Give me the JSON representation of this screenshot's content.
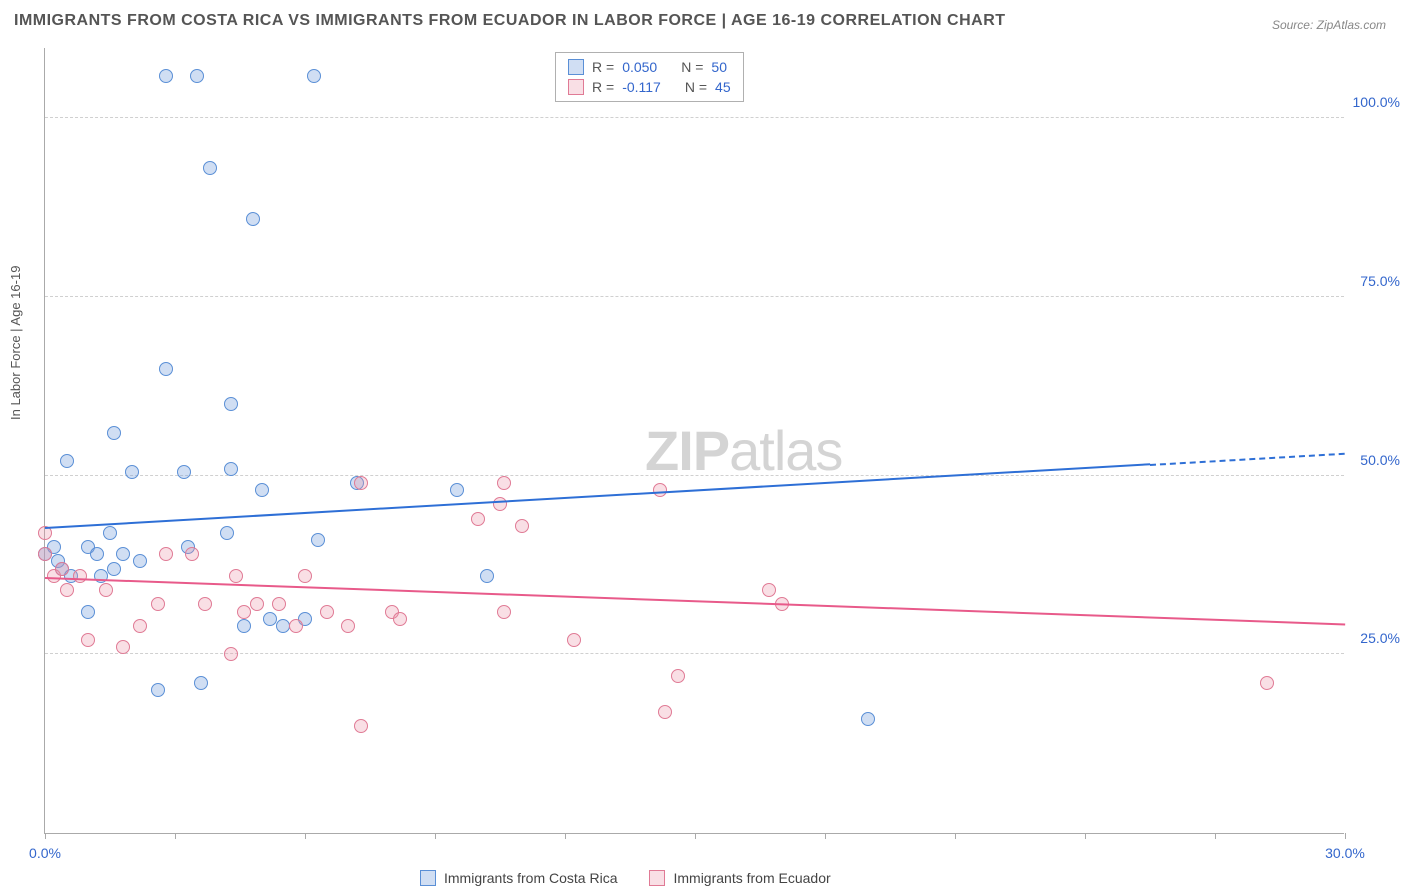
{
  "title": "IMMIGRANTS FROM COSTA RICA VS IMMIGRANTS FROM ECUADOR IN LABOR FORCE | AGE 16-19 CORRELATION CHART",
  "source_label": "Source:",
  "source_name": "ZipAtlas.com",
  "y_axis_label": "In Labor Force | Age 16-19",
  "watermark_bold": "ZIP",
  "watermark_light": "atlas",
  "chart": {
    "type": "scatter-with-trend",
    "background_color": "#ffffff",
    "grid_color": "#d0d0d0",
    "axis_color": "#aaaaaa",
    "tick_label_color": "#3366cc",
    "xlim": [
      0,
      30
    ],
    "ylim": [
      0,
      110
    ],
    "y_ticks": [
      {
        "value": 25,
        "label": "25.0%"
      },
      {
        "value": 50,
        "label": "50.0%"
      },
      {
        "value": 75,
        "label": "75.0%"
      },
      {
        "value": 100,
        "label": "100.0%"
      }
    ],
    "x_ticks": [
      {
        "value": 0,
        "label": "0.0%"
      },
      {
        "value": 3,
        "label": ""
      },
      {
        "value": 6,
        "label": ""
      },
      {
        "value": 9,
        "label": ""
      },
      {
        "value": 12,
        "label": ""
      },
      {
        "value": 15,
        "label": ""
      },
      {
        "value": 18,
        "label": ""
      },
      {
        "value": 21,
        "label": ""
      },
      {
        "value": 24,
        "label": ""
      },
      {
        "value": 27,
        "label": ""
      },
      {
        "value": 30,
        "label": "30.0%"
      }
    ],
    "series": [
      {
        "name": "Immigrants from Costa Rica",
        "fill_color": "rgba(120,160,220,0.35)",
        "stroke_color": "#5a8fd6",
        "trend_color": "#2e6fd6",
        "R": "0.050",
        "N": "50",
        "trend": {
          "y_at_xmin": 42.5,
          "y_at_xmax": 53.0,
          "solid_end_x": 25.5
        },
        "points": [
          {
            "x": 0.0,
            "y": 39
          },
          {
            "x": 0.2,
            "y": 40
          },
          {
            "x": 0.3,
            "y": 38
          },
          {
            "x": 0.4,
            "y": 37
          },
          {
            "x": 0.5,
            "y": 52
          },
          {
            "x": 0.6,
            "y": 36
          },
          {
            "x": 1.0,
            "y": 40
          },
          {
            "x": 1.0,
            "y": 31
          },
          {
            "x": 1.2,
            "y": 39
          },
          {
            "x": 1.3,
            "y": 36
          },
          {
            "x": 1.5,
            "y": 42
          },
          {
            "x": 1.6,
            "y": 37
          },
          {
            "x": 1.6,
            "y": 56
          },
          {
            "x": 1.8,
            "y": 39
          },
          {
            "x": 2.0,
            "y": 50.5
          },
          {
            "x": 2.2,
            "y": 38
          },
          {
            "x": 2.6,
            "y": 20
          },
          {
            "x": 2.8,
            "y": 106
          },
          {
            "x": 2.8,
            "y": 65
          },
          {
            "x": 3.2,
            "y": 50.5
          },
          {
            "x": 3.3,
            "y": 40
          },
          {
            "x": 3.5,
            "y": 106
          },
          {
            "x": 3.6,
            "y": 21
          },
          {
            "x": 3.8,
            "y": 93
          },
          {
            "x": 4.2,
            "y": 42
          },
          {
            "x": 4.3,
            "y": 60
          },
          {
            "x": 4.3,
            "y": 51
          },
          {
            "x": 4.6,
            "y": 29
          },
          {
            "x": 4.8,
            "y": 86
          },
          {
            "x": 5.0,
            "y": 48
          },
          {
            "x": 5.2,
            "y": 30
          },
          {
            "x": 5.5,
            "y": 29
          },
          {
            "x": 6.0,
            "y": 30
          },
          {
            "x": 6.2,
            "y": 106
          },
          {
            "x": 6.3,
            "y": 41
          },
          {
            "x": 7.2,
            "y": 49
          },
          {
            "x": 9.5,
            "y": 48
          },
          {
            "x": 10.2,
            "y": 36
          },
          {
            "x": 19.0,
            "y": 16
          }
        ]
      },
      {
        "name": "Immigrants from Ecuador",
        "fill_color": "rgba(235,150,170,0.30)",
        "stroke_color": "#e07a95",
        "trend_color": "#e85a8a",
        "R": "-0.117",
        "N": "45",
        "trend": {
          "y_at_xmin": 35.5,
          "y_at_xmax": 29.0,
          "solid_end_x": 30
        },
        "points": [
          {
            "x": 0.0,
            "y": 42
          },
          {
            "x": 0.0,
            "y": 39
          },
          {
            "x": 0.2,
            "y": 36
          },
          {
            "x": 0.4,
            "y": 37
          },
          {
            "x": 0.5,
            "y": 34
          },
          {
            "x": 0.8,
            "y": 36
          },
          {
            "x": 1.0,
            "y": 27
          },
          {
            "x": 1.4,
            "y": 34
          },
          {
            "x": 1.8,
            "y": 26
          },
          {
            "x": 2.2,
            "y": 29
          },
          {
            "x": 2.6,
            "y": 32
          },
          {
            "x": 2.8,
            "y": 39
          },
          {
            "x": 3.4,
            "y": 39
          },
          {
            "x": 3.7,
            "y": 32
          },
          {
            "x": 4.3,
            "y": 25
          },
          {
            "x": 4.4,
            "y": 36
          },
          {
            "x": 4.6,
            "y": 31
          },
          {
            "x": 4.9,
            "y": 32
          },
          {
            "x": 5.4,
            "y": 32
          },
          {
            "x": 5.8,
            "y": 29
          },
          {
            "x": 6.0,
            "y": 36
          },
          {
            "x": 6.5,
            "y": 31
          },
          {
            "x": 7.0,
            "y": 29
          },
          {
            "x": 7.3,
            "y": 49
          },
          {
            "x": 7.3,
            "y": 15
          },
          {
            "x": 8.0,
            "y": 31
          },
          {
            "x": 8.2,
            "y": 30
          },
          {
            "x": 10.0,
            "y": 44
          },
          {
            "x": 10.5,
            "y": 46
          },
          {
            "x": 10.6,
            "y": 49
          },
          {
            "x": 10.6,
            "y": 31
          },
          {
            "x": 11.0,
            "y": 43
          },
          {
            "x": 12.2,
            "y": 27
          },
          {
            "x": 14.2,
            "y": 48
          },
          {
            "x": 14.3,
            "y": 17
          },
          {
            "x": 14.6,
            "y": 22
          },
          {
            "x": 16.7,
            "y": 34
          },
          {
            "x": 17.0,
            "y": 32
          },
          {
            "x": 28.2,
            "y": 21
          }
        ]
      }
    ]
  },
  "stat_legend": {
    "rows": [
      {
        "swatch_fill": "rgba(120,160,220,0.35)",
        "swatch_border": "#5a8fd6",
        "r_label": "R =",
        "r_val": "0.050",
        "n_label": "N =",
        "n_val": "50"
      },
      {
        "swatch_fill": "rgba(235,150,170,0.30)",
        "swatch_border": "#e07a95",
        "r_label": "R =",
        "r_val": "-0.117",
        "n_label": "N =",
        "n_val": "45"
      }
    ]
  },
  "bottom_legend": [
    {
      "swatch_fill": "rgba(120,160,220,0.35)",
      "swatch_border": "#5a8fd6",
      "label": "Immigrants from Costa Rica"
    },
    {
      "swatch_fill": "rgba(235,150,170,0.30)",
      "swatch_border": "#e07a95",
      "label": "Immigrants from Ecuador"
    }
  ]
}
